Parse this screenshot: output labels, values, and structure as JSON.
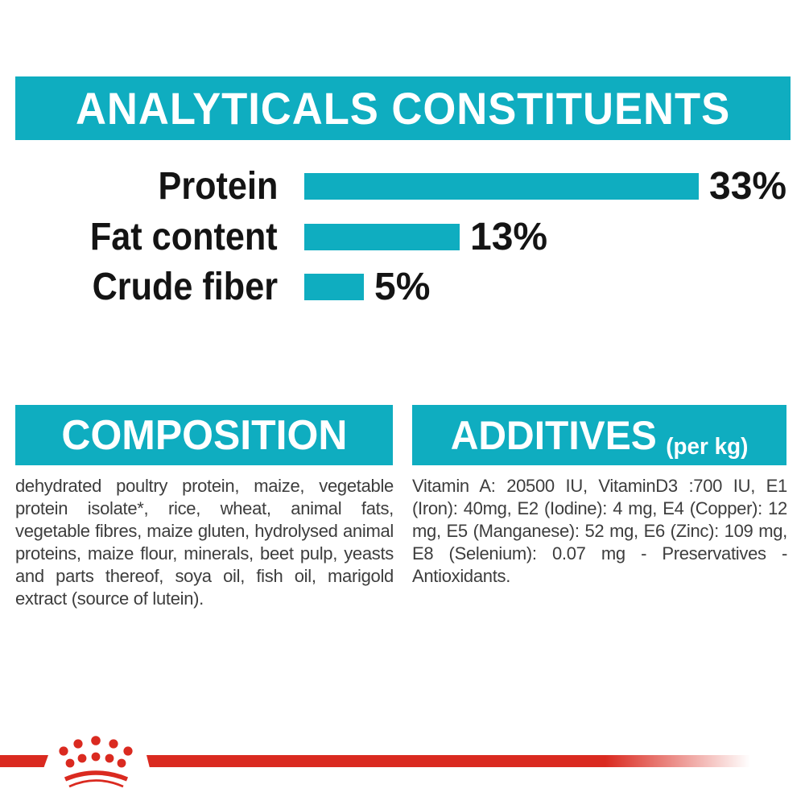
{
  "colors": {
    "teal": "#0fadc0",
    "red": "#da2a20",
    "heading_text": "#ffffff",
    "chart_text": "#141414",
    "body_text": "#3d3d3d"
  },
  "analyticals": {
    "title": "ANALYTICALS CONSTITUENTS"
  },
  "chart_data": {
    "type": "bar",
    "orientation": "horizontal",
    "title": "ANALYTICALS CONSTITUENTS",
    "categories": [
      "Protein",
      "Fat content",
      "Crude fiber"
    ],
    "values": [
      33,
      13,
      5
    ],
    "unit": "%",
    "value_labels": [
      "33%",
      "13%",
      "5%"
    ],
    "bar_color": "#0fadc0",
    "xlim": [
      0,
      33
    ],
    "grid": false,
    "legend": false
  },
  "composition": {
    "title": "COMPOSITION",
    "text": "dehydrated poultry protein, maize, vegetable protein isolate*, rice, wheat, animal fats, vegetable fibres, maize gluten, hydrolysed animal proteins, maize flour, minerals, beet pulp, yeasts and parts thereof, soya oil, fish oil, marigold extract (source of lutein)."
  },
  "additives": {
    "title": "ADDITIVES",
    "title_suffix": "(per kg)",
    "text": "Vitamin A: 20500 IU, VitaminD3 :700 IU, E1 (Iron): 40mg, E2 (Iodine): 4 mg, E4 (Copper): 12 mg, E5 (Manganese): 52 mg, E6 (Zinc): 109 mg, E8 (Selenium): 0.07 mg - Preservatives - Antioxidants."
  },
  "footer": {
    "logo": "royal-canin-crown"
  }
}
